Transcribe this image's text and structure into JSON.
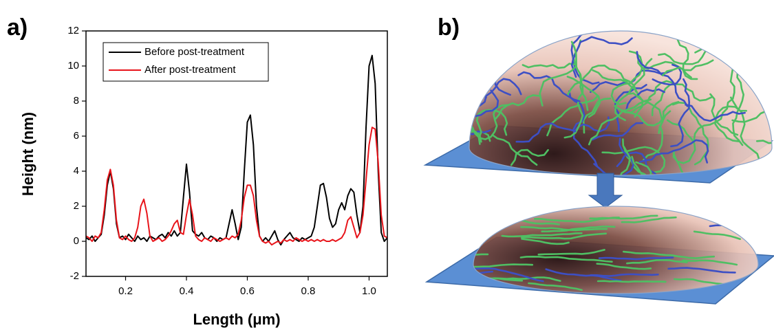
{
  "panel_labels": [
    "a)",
    "b)"
  ],
  "chart_data": {
    "type": "line",
    "xlabel": "Length (μm)",
    "ylabel": "Height (nm)",
    "xlim": [
      0.07,
      1.06
    ],
    "ylim": [
      -2,
      12
    ],
    "xticks": [
      0.2,
      0.4,
      0.6,
      0.8,
      {
        "value": 1,
        "label": "1.0"
      }
    ],
    "yticks": [
      -2,
      0,
      2,
      4,
      6,
      8,
      10,
      12
    ],
    "legend": "upper left",
    "x": [
      0.07,
      0.08,
      0.09,
      0.1,
      0.11,
      0.12,
      0.13,
      0.14,
      0.15,
      0.16,
      0.17,
      0.18,
      0.19,
      0.2,
      0.21,
      0.22,
      0.23,
      0.24,
      0.25,
      0.26,
      0.27,
      0.28,
      0.29,
      0.3,
      0.31,
      0.32,
      0.33,
      0.34,
      0.35,
      0.36,
      0.37,
      0.38,
      0.39,
      0.4,
      0.41,
      0.42,
      0.43,
      0.44,
      0.45,
      0.46,
      0.47,
      0.48,
      0.49,
      0.5,
      0.51,
      0.52,
      0.53,
      0.54,
      0.55,
      0.56,
      0.57,
      0.58,
      0.59,
      0.6,
      0.61,
      0.62,
      0.63,
      0.64,
      0.65,
      0.66,
      0.67,
      0.68,
      0.69,
      0.7,
      0.71,
      0.72,
      0.73,
      0.74,
      0.75,
      0.76,
      0.77,
      0.78,
      0.79,
      0.8,
      0.81,
      0.82,
      0.83,
      0.84,
      0.85,
      0.86,
      0.87,
      0.88,
      0.89,
      0.9,
      0.91,
      0.92,
      0.93,
      0.94,
      0.95,
      0.96,
      0.97,
      0.98,
      0.99,
      1.0,
      1.01,
      1.02,
      1.03,
      1.04,
      1.05,
      1.06
    ],
    "series": [
      {
        "name": "Before post-treatment",
        "color": "#000000",
        "values": [
          0.2,
          0.1,
          0.3,
          0.0,
          0.2,
          0.4,
          1.5,
          3.2,
          4.0,
          3.0,
          1.0,
          0.2,
          0.3,
          0.1,
          0.4,
          0.2,
          0.0,
          0.3,
          0.1,
          0.2,
          0.0,
          0.3,
          0.2,
          0.1,
          0.3,
          0.4,
          0.2,
          0.5,
          0.3,
          0.6,
          0.3,
          0.5,
          2.5,
          4.4,
          2.8,
          0.6,
          0.4,
          0.3,
          0.5,
          0.2,
          0.1,
          0.3,
          0.2,
          0.0,
          0.2,
          0.1,
          0.2,
          1.0,
          1.8,
          1.0,
          0.1,
          0.8,
          4.0,
          6.8,
          7.2,
          5.5,
          2.0,
          0.3,
          0.0,
          0.2,
          0.0,
          0.3,
          0.6,
          0.1,
          -0.2,
          0.1,
          0.3,
          0.5,
          0.2,
          0.1,
          0.0,
          0.2,
          0.1,
          0.2,
          0.3,
          0.8,
          2.0,
          3.2,
          3.3,
          2.5,
          1.3,
          0.8,
          1.0,
          1.8,
          2.2,
          1.8,
          2.6,
          3.0,
          2.8,
          1.5,
          0.5,
          2.0,
          6.5,
          10.0,
          10.6,
          9.0,
          4.0,
          0.5,
          0.0,
          0.2
        ]
      },
      {
        "name": "After post-treatment",
        "color": "#e8141a",
        "values": [
          0.3,
          0.2,
          0.0,
          0.3,
          0.2,
          0.5,
          1.8,
          3.5,
          4.1,
          3.2,
          1.2,
          0.2,
          0.1,
          0.3,
          0.1,
          0.0,
          0.2,
          0.8,
          2.0,
          2.4,
          1.6,
          0.3,
          0.0,
          0.1,
          0.2,
          0.0,
          0.1,
          0.3,
          0.6,
          1.0,
          1.2,
          0.5,
          0.4,
          1.5,
          2.4,
          1.5,
          0.3,
          0.1,
          0.0,
          0.2,
          0.1,
          0.0,
          0.2,
          0.1,
          0.0,
          0.1,
          0.2,
          0.1,
          0.3,
          0.2,
          0.4,
          1.2,
          2.5,
          3.2,
          3.2,
          2.6,
          1.2,
          0.3,
          0.0,
          -0.1,
          0.0,
          -0.2,
          -0.1,
          0.0,
          -0.1,
          0.1,
          0.0,
          0.1,
          0.0,
          0.2,
          0.1,
          0.0,
          0.1,
          0.0,
          0.1,
          0.0,
          0.1,
          0.0,
          0.1,
          0.0,
          0.0,
          0.1,
          0.0,
          0.1,
          0.2,
          0.5,
          1.2,
          1.4,
          0.8,
          0.2,
          0.5,
          1.5,
          3.5,
          5.5,
          6.5,
          6.4,
          4.5,
          1.5,
          0.3,
          0.2
        ]
      }
    ]
  }
}
